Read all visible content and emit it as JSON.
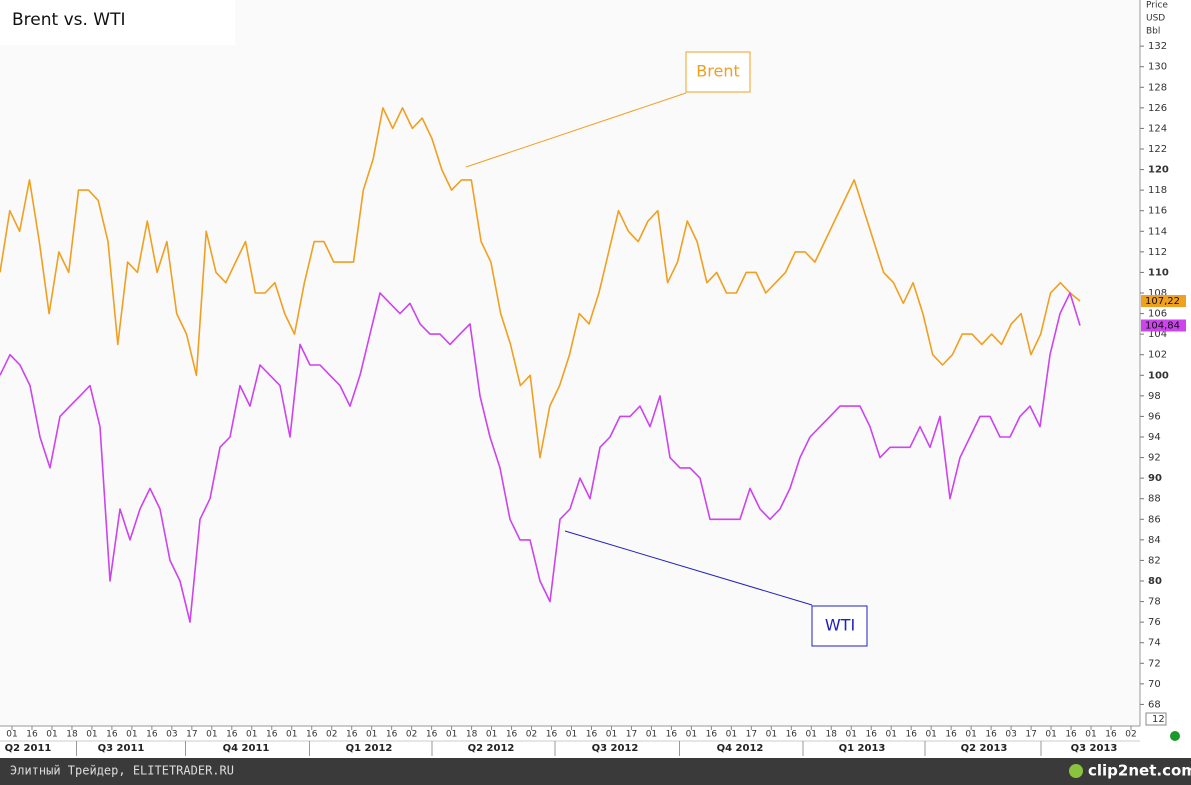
{
  "chart_data": {
    "type": "line",
    "title": "Brent vs. WTI",
    "y_axis_label": [
      "Price",
      "USD",
      "Bbl"
    ],
    "series": [
      {
        "name": "Brent",
        "color": "#f0a020",
        "last_label": {
          "value": 107.22,
          "label": "107,22"
        },
        "values": [
          110,
          116,
          114,
          119,
          113,
          106,
          112,
          110,
          118,
          118,
          117,
          113,
          103,
          111,
          110,
          115,
          110,
          113,
          106,
          104,
          100,
          114,
          110,
          109,
          111,
          113,
          108,
          108,
          109,
          106,
          104,
          109,
          113,
          113,
          111,
          111,
          111,
          118,
          121,
          126,
          124,
          126,
          124,
          125,
          123,
          120,
          118,
          119,
          119,
          113,
          111,
          106,
          103,
          99,
          100,
          92,
          97,
          99,
          102,
          106,
          105,
          108,
          112,
          116,
          114,
          113,
          115,
          116,
          109,
          111,
          115,
          113,
          109,
          110,
          108,
          108,
          110,
          110,
          108,
          109,
          110,
          112,
          112,
          111,
          113,
          115,
          117,
          119,
          116,
          113,
          110,
          109,
          107,
          109,
          106,
          102,
          101,
          102,
          104,
          104,
          103,
          104,
          103,
          105,
          106,
          102,
          104,
          108,
          109,
          108,
          107.22
        ]
      },
      {
        "name": "WTI",
        "color": "#cc44ee",
        "last_label": {
          "value": 104.84,
          "label": "104,84"
        },
        "values": [
          100,
          102,
          101,
          99,
          94,
          91,
          96,
          97,
          98,
          99,
          95,
          80,
          87,
          84,
          87,
          89,
          87,
          82,
          80,
          76,
          86,
          88,
          93,
          94,
          99,
          97,
          101,
          100,
          99,
          94,
          103,
          101,
          101,
          100,
          99,
          97,
          100,
          104,
          108,
          107,
          106,
          107,
          105,
          104,
          104,
          103,
          104,
          105,
          98,
          94,
          91,
          86,
          84,
          84,
          80,
          78,
          86,
          87,
          90,
          88,
          93,
          94,
          96,
          96,
          97,
          95,
          98,
          92,
          91,
          91,
          90,
          86,
          86,
          86,
          86,
          89,
          87,
          86,
          87,
          89,
          92,
          94,
          95,
          96,
          97,
          97,
          97,
          95,
          92,
          93,
          93,
          93,
          95,
          93,
          96,
          88,
          92,
          94,
          96,
          96,
          94,
          94,
          96,
          97,
          95,
          102,
          106,
          108,
          104.84
        ]
      }
    ],
    "ylim": [
      66,
      136
    ],
    "yticks": [
      68,
      70,
      72,
      74,
      76,
      78,
      80,
      82,
      84,
      86,
      88,
      90,
      92,
      94,
      96,
      98,
      100,
      102,
      104,
      106,
      108,
      110,
      112,
      114,
      116,
      118,
      120,
      122,
      124,
      126,
      128,
      130,
      132
    ],
    "bold_ticks": [
      80,
      90,
      100,
      110,
      120
    ],
    "grid": false,
    "x_day_labels": [
      "01",
      "16",
      "01",
      "18",
      "01",
      "16",
      "01",
      "16",
      "03",
      "17",
      "01",
      "16",
      "01",
      "16",
      "01",
      "16",
      "02",
      "16",
      "01",
      "16",
      "02",
      "16",
      "01",
      "18",
      "01",
      "16",
      "02",
      "16",
      "01",
      "16",
      "01",
      "17",
      "01",
      "16",
      "01",
      "16",
      "01",
      "17",
      "01",
      "16",
      "01",
      "18",
      "01",
      "16",
      "01",
      "16",
      "01",
      "16",
      "01",
      "16",
      "03",
      "17",
      "01",
      "16",
      "01",
      "16",
      "02"
    ],
    "x_quarter_labels": [
      "Q2 2011",
      "Q3 2011",
      "Q4 2011",
      "Q1 2012",
      "Q2 2012",
      "Q3 2012",
      "Q4 2012",
      "Q1 2013",
      "Q2 2013",
      "Q3 2013"
    ],
    "axis_corner_label": "12",
    "annotations": [
      "Brent",
      "WTI"
    ],
    "footer": {
      "left": "Элитный Трейдер, ELITETRADER.RU",
      "right": "clip2net.com"
    }
  }
}
